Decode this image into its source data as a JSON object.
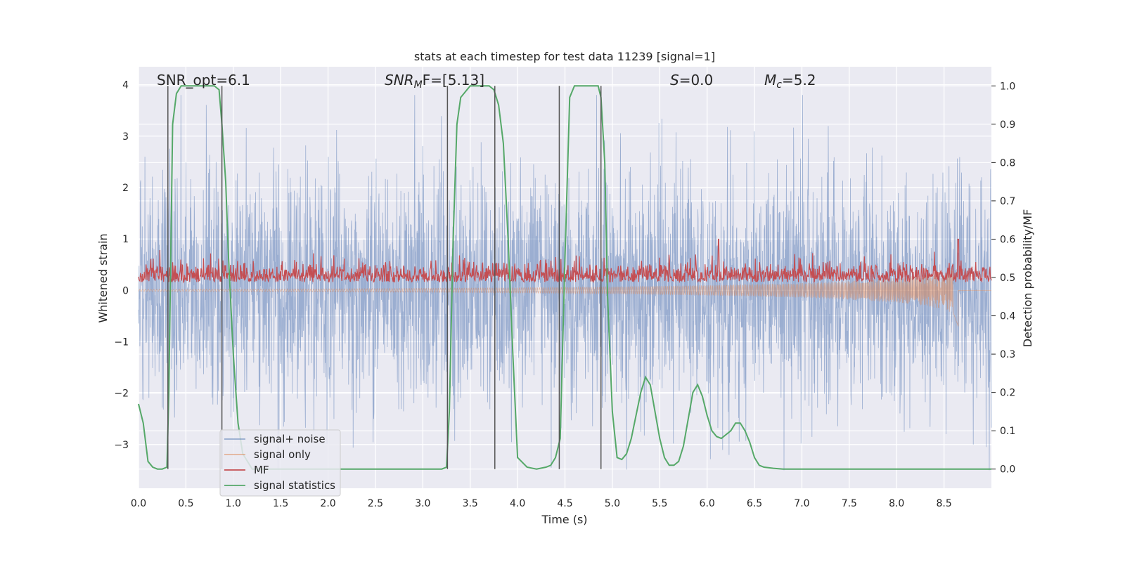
{
  "chart_data": {
    "type": "line",
    "title": "stats at each timestep for test data 11239 [signal=1]",
    "xlabel": "Time (s)",
    "ylabel": "Whitened strain",
    "y2label": "Detection probability/MF",
    "xlim": [
      0,
      9.0
    ],
    "ylim": [
      -3.85,
      4.35
    ],
    "y2lim": [
      -0.05,
      1.05
    ],
    "xticks": [
      0.0,
      0.5,
      1.0,
      1.5,
      2.0,
      2.5,
      3.0,
      3.5,
      4.0,
      4.5,
      5.0,
      5.5,
      6.0,
      6.5,
      7.0,
      7.5,
      8.0,
      8.5
    ],
    "xtick_labels": [
      "0.0",
      "0.5",
      "1.0",
      "1.5",
      "2.0",
      "2.5",
      "3.0",
      "3.5",
      "4.0",
      "4.5",
      "5.0",
      "5.5",
      "6.0",
      "6.5",
      "7.0",
      "7.5",
      "8.0",
      "8.5"
    ],
    "yticks": [
      -3,
      -2,
      -1,
      0,
      1,
      2,
      3,
      4
    ],
    "ytick_labels": [
      "−3",
      "−2",
      "−1",
      "0",
      "1",
      "2",
      "3",
      "4"
    ],
    "y2ticks": [
      0.0,
      0.1,
      0.2,
      0.3,
      0.4,
      0.5,
      0.6,
      0.7,
      0.8,
      0.9,
      1.0
    ],
    "y2tick_labels": [
      "0.0",
      "0.1",
      "0.2",
      "0.3",
      "0.4",
      "0.5",
      "0.6",
      "0.7",
      "0.8",
      "0.9",
      "1.0"
    ],
    "annotations": {
      "snr_opt": "SNR_opt=6.1",
      "snr_mf_base": "SNR",
      "snr_mf_sub": "M",
      "snr_mf_rest": "F=[5.13]",
      "s_sym": "S",
      "s_rest": "=0.0",
      "mc_base": "M",
      "mc_sub": "c",
      "mc_rest": "=5.2"
    },
    "legend": {
      "location": "lower-left",
      "entries": [
        "signal+ noise",
        "signal only",
        "MF",
        "signal statistics"
      ]
    },
    "colors": {
      "plot_bg": "#eaeaf2",
      "grid": "#ffffff",
      "signal_noise": "#4c72b0",
      "signal_only": "#dd8452",
      "mf": "#c44e52",
      "signal_statistics": "#55a868",
      "vlines": "#555555"
    },
    "series": [
      {
        "name": "signal+ noise",
        "description": "white noise, approx amplitude 1.2 std, range -3.5..3.8",
        "approx_std": 1.15,
        "approx_range": [
          -3.5,
          3.8
        ]
      },
      {
        "name": "signal only",
        "description": "chirp rising from 0 to about 0.4 amplitude, ending near t=8.65 with dip to -0.7",
        "x": [
          0,
          2,
          4,
          5,
          6,
          7,
          7.5,
          8,
          8.3,
          8.5,
          8.6,
          8.65
        ],
        "envelope": [
          0.02,
          0.03,
          0.05,
          0.07,
          0.1,
          0.14,
          0.18,
          0.24,
          0.3,
          0.38,
          0.45,
          0.7
        ]
      },
      {
        "name": "MF",
        "description": "matched filter output on secondary axis, baseline ~0.5 with noise, peaks ~0.6 at t=6.12 and t=8.65",
        "baseline": 0.5,
        "range": [
          0.47,
          0.6
        ],
        "peaks": [
          [
            6.12,
            0.6
          ],
          [
            8.65,
            0.6
          ]
        ]
      },
      {
        "name": "signal statistics",
        "axis": "secondary",
        "x": [
          0.0,
          0.05,
          0.1,
          0.15,
          0.2,
          0.25,
          0.3,
          0.32,
          0.36,
          0.4,
          0.45,
          0.5,
          0.6,
          0.7,
          0.8,
          0.85,
          0.88,
          0.92,
          0.95,
          1.0,
          1.05,
          1.1,
          1.2,
          1.5,
          2.0,
          2.5,
          3.0,
          3.2,
          3.25,
          3.28,
          3.32,
          3.36,
          3.4,
          3.5,
          3.6,
          3.7,
          3.75,
          3.8,
          3.85,
          3.9,
          3.95,
          4.0,
          4.1,
          4.2,
          4.3,
          4.35,
          4.4,
          4.45,
          4.5,
          4.55,
          4.6,
          4.7,
          4.8,
          4.85,
          4.88,
          4.92,
          4.95,
          5.0,
          5.05,
          5.1,
          5.15,
          5.2,
          5.25,
          5.3,
          5.35,
          5.4,
          5.45,
          5.5,
          5.55,
          5.6,
          5.65,
          5.7,
          5.75,
          5.8,
          5.85,
          5.9,
          5.95,
          6.0,
          6.05,
          6.1,
          6.15,
          6.2,
          6.25,
          6.3,
          6.35,
          6.4,
          6.45,
          6.5,
          6.55,
          6.6,
          6.7,
          6.8,
          7.0,
          8.0,
          9.0
        ],
        "values": [
          0.17,
          0.12,
          0.02,
          0.005,
          0.0,
          0.0,
          0.005,
          0.2,
          0.9,
          0.98,
          1.0,
          1.0,
          1.0,
          1.0,
          1.0,
          0.99,
          0.9,
          0.75,
          0.55,
          0.3,
          0.12,
          0.04,
          0.0,
          0.0,
          0.0,
          0.0,
          0.0,
          0.0,
          0.005,
          0.15,
          0.6,
          0.9,
          0.97,
          1.0,
          1.0,
          1.0,
          0.99,
          0.95,
          0.85,
          0.6,
          0.3,
          0.03,
          0.005,
          0.0,
          0.005,
          0.01,
          0.03,
          0.08,
          0.55,
          0.97,
          1.0,
          1.0,
          1.0,
          1.0,
          0.97,
          0.8,
          0.45,
          0.15,
          0.03,
          0.025,
          0.04,
          0.08,
          0.14,
          0.2,
          0.24,
          0.22,
          0.15,
          0.08,
          0.03,
          0.01,
          0.01,
          0.02,
          0.06,
          0.13,
          0.2,
          0.22,
          0.19,
          0.14,
          0.1,
          0.085,
          0.08,
          0.09,
          0.1,
          0.12,
          0.12,
          0.1,
          0.07,
          0.03,
          0.01,
          0.005,
          0.002,
          0.0,
          0.0,
          0.0,
          0.0
        ]
      }
    ],
    "vertical_lines": [
      0.31,
      0.88,
      3.26,
      3.76,
      4.44,
      4.88
    ]
  }
}
